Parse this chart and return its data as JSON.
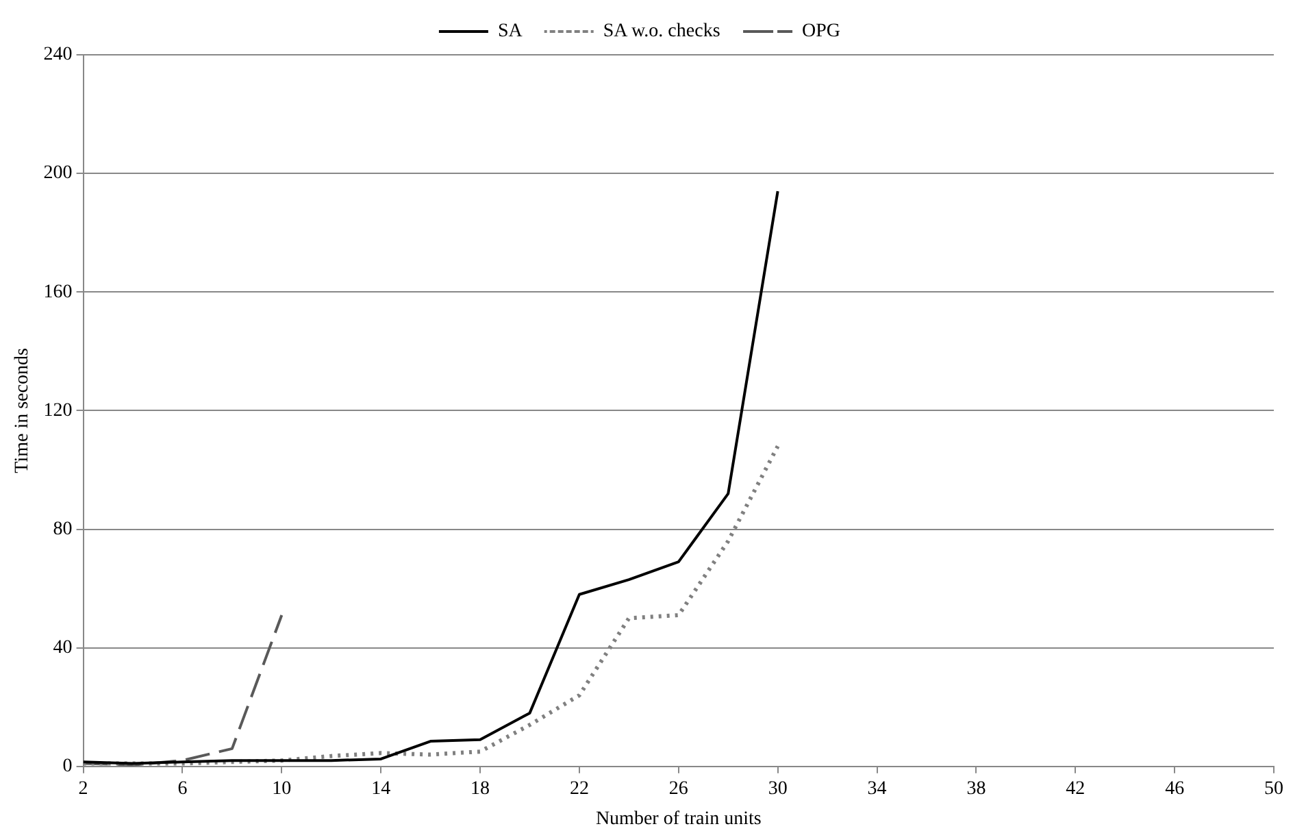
{
  "chart_data": {
    "type": "line",
    "xlabel": "Number of train units",
    "ylabel": "Time in seconds",
    "xlim": [
      2,
      50
    ],
    "xticks": [
      2,
      6,
      10,
      14,
      18,
      22,
      26,
      30,
      34,
      38,
      42,
      46,
      50
    ],
    "ylim": [
      0,
      240
    ],
    "yticks": [
      0,
      40,
      80,
      120,
      160,
      200,
      240
    ],
    "grid": "y",
    "legend": "top",
    "marker": "none",
    "series": [
      {
        "name": "SA",
        "color": "#000000",
        "line_style": "solid",
        "x": [
          2,
          4,
          6,
          8,
          10,
          12,
          14,
          16,
          18,
          20,
          22,
          24,
          26,
          28,
          30
        ],
        "values": [
          1.5,
          1,
          1.5,
          2,
          2,
          2,
          2.5,
          8.5,
          9,
          18,
          58,
          63,
          69,
          92,
          194
        ]
      },
      {
        "name": "SA w.o. checks",
        "color": "#808080",
        "line_style": "dotted",
        "x": [
          2,
          4,
          6,
          8,
          10,
          12,
          14,
          16,
          18,
          20,
          22,
          24,
          26,
          28,
          30
        ],
        "values": [
          1,
          1,
          1,
          1.5,
          2,
          3.5,
          4.5,
          4,
          5,
          14,
          24,
          50,
          51,
          76,
          108
        ]
      },
      {
        "name": "OPG",
        "color": "#595959",
        "line_style": "dashed",
        "x": [
          2,
          4,
          6,
          8,
          10
        ],
        "values": [
          1,
          0.5,
          2,
          6,
          51
        ]
      }
    ]
  }
}
